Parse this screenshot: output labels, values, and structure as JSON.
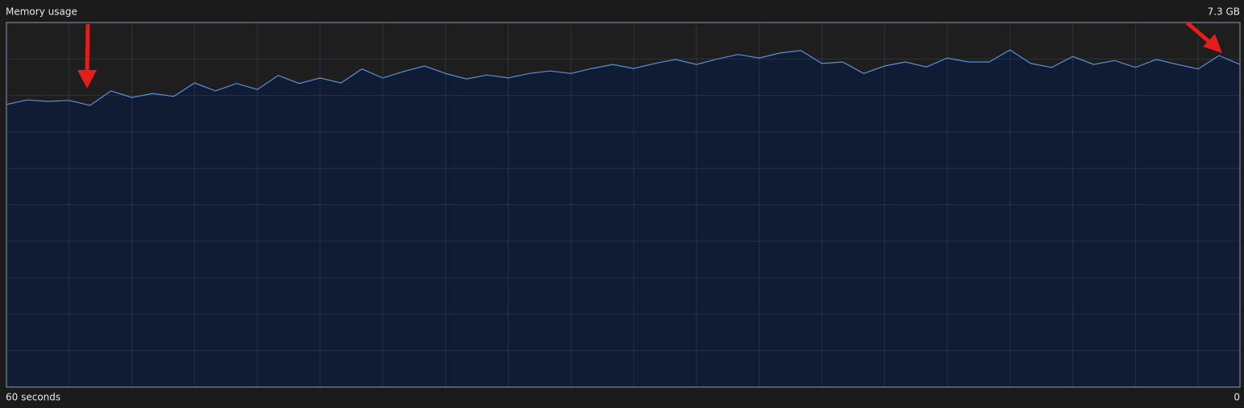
{
  "chart_data": {
    "type": "area",
    "title": "Memory usage",
    "values": [
      5.66,
      5.75,
      5.72,
      5.74,
      5.64,
      5.93,
      5.8,
      5.88,
      5.82,
      6.09,
      5.93,
      6.08,
      5.96,
      6.24,
      6.08,
      6.19,
      6.09,
      6.37,
      6.19,
      6.32,
      6.43,
      6.28,
      6.17,
      6.25,
      6.19,
      6.28,
      6.33,
      6.28,
      6.38,
      6.46,
      6.38,
      6.48,
      6.56,
      6.46,
      6.57,
      6.66,
      6.59,
      6.69,
      6.74,
      6.48,
      6.51,
      6.28,
      6.43,
      6.51,
      6.41,
      6.59,
      6.51,
      6.51,
      6.75,
      6.48,
      6.4,
      6.62,
      6.46,
      6.54,
      6.4,
      6.56,
      6.46,
      6.37,
      6.64,
      6.46
    ],
    "color": "#5b8fd6",
    "ylim": [
      0,
      7.3
    ],
    "yticks": [
      {
        "value": 7.3,
        "label": "7.3 GB"
      }
    ],
    "xlim": [
      60,
      0
    ],
    "xticks": [
      {
        "value": 60,
        "label": "60 seconds"
      },
      0
    ],
    "grid": true
  }
}
